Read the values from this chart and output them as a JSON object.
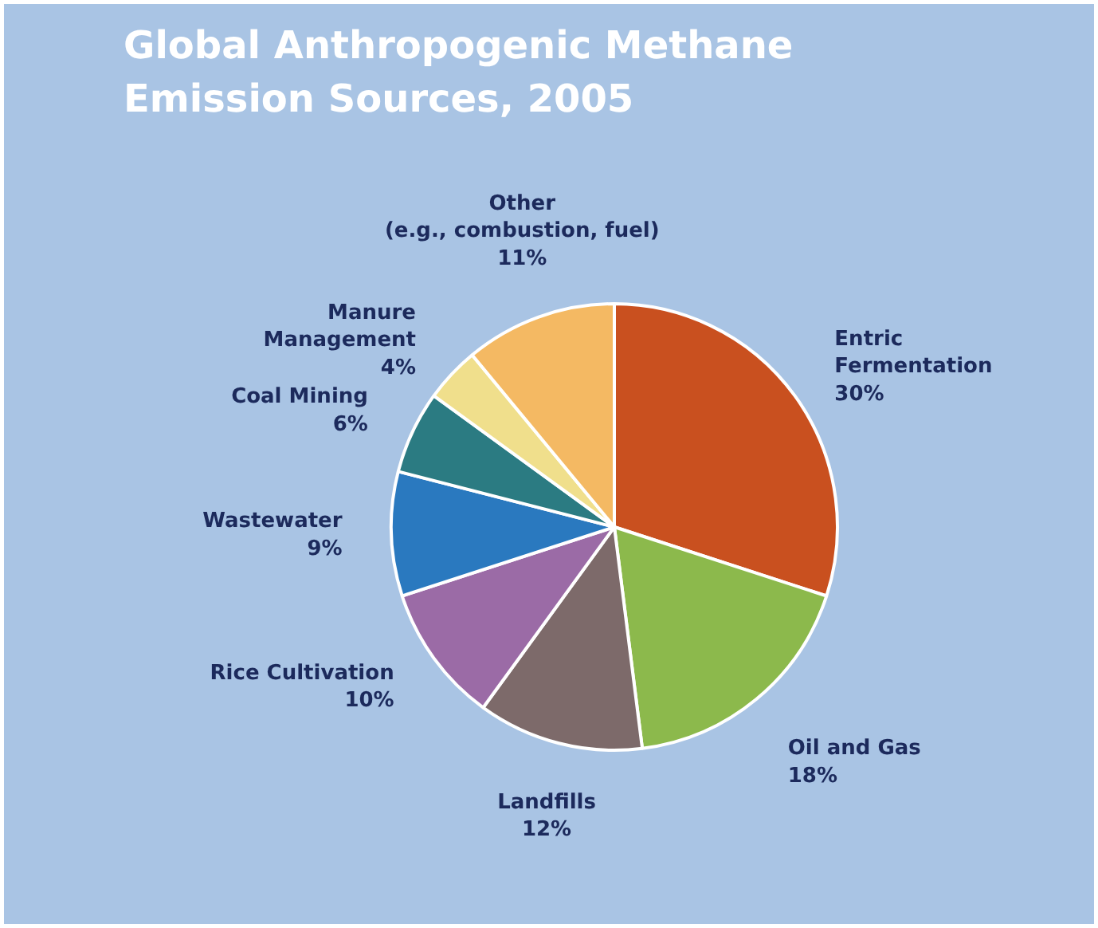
{
  "chart_data": {
    "type": "pie",
    "title": "Global Anthropogenic Methane\nEmission Sources, 2005",
    "categories": [
      "Entric\nFermentation",
      "Oil and Gas",
      "Landfills",
      "Rice Cultivation",
      "Wastewater",
      "Coal Mining",
      "Manure\nManagement",
      "Other\n(e.g., combustion, fuel)"
    ],
    "values": [
      30,
      18,
      12,
      10,
      9,
      6,
      4,
      11
    ],
    "value_labels": [
      "30%",
      "18%",
      "12%",
      "10%",
      "9%",
      "6%",
      "4%",
      "11%"
    ],
    "colors": [
      "#c9501f",
      "#8cb94c",
      "#7d6a6a",
      "#9b6ba6",
      "#2a79bf",
      "#2b7b82",
      "#f0df8c",
      "#f4b963"
    ]
  }
}
